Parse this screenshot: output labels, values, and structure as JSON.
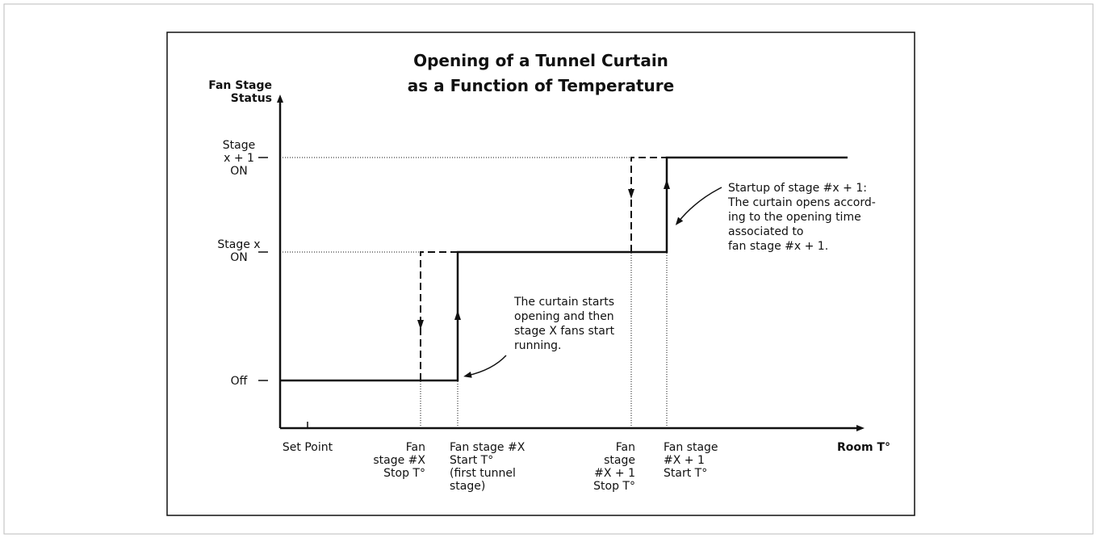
{
  "title": [
    "Opening of a Tunnel Curtain",
    "as a Function of Temperature"
  ],
  "y_axis_label": [
    "Fan Stage",
    "Status"
  ],
  "x_axis_label": "Room T°",
  "levels": [
    [
      "Stage",
      "x + 1",
      "ON"
    ],
    [
      "Stage x",
      "ON"
    ],
    [
      "Off"
    ]
  ],
  "x_labels": [
    [
      "Set Point"
    ],
    [
      "Fan",
      "stage #X",
      "Stop T°"
    ],
    [
      "Fan stage #X",
      "Start T°",
      "(first  tunnel",
      "stage)"
    ],
    [
      "Fan",
      "stage",
      "#X + 1",
      "Stop T°"
    ],
    [
      "Fan stage",
      "#X + 1",
      "Start T°"
    ]
  ],
  "annotations": [
    [
      "The curtain starts",
      "opening and then",
      "stage X fans start",
      "running."
    ],
    [
      "Startup of stage #x  +  1:",
      "The curtain opens accord-",
      "ing to the opening time",
      "associated to",
      "fan stage #x  +  1."
    ]
  ]
}
